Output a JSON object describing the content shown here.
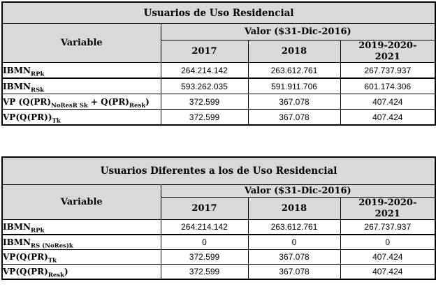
{
  "colors": {
    "header_bg": "#d9d9d9",
    "border": "#000000",
    "page_bg": "#ffffff",
    "text": "#000000"
  },
  "tables": [
    {
      "title": "Usuarios de Uso Residencial",
      "variable_header": "Variable",
      "valor_header": "Valor ($31-Dic-2016)",
      "year_headers": [
        "2017",
        "2018",
        "2019-2020-\n2021"
      ],
      "rows": [
        {
          "label": [
            {
              "text": "IBMN",
              "sub": false
            },
            {
              "text": "RPk",
              "sub": true
            }
          ],
          "values": [
            "264.214.142",
            "263.612.761",
            "267.737.937"
          ]
        },
        {
          "label": [
            {
              "text": "IBMN",
              "sub": false
            },
            {
              "text": "RSk",
              "sub": true
            }
          ],
          "values": [
            "593.262.035",
            "591.911.706",
            "601.174.306"
          ]
        },
        {
          "label": [
            {
              "text": "VP (Q(PR)",
              "sub": false
            },
            {
              "text": "NoResR Sk",
              "sub": true
            },
            {
              "text": " + Q(PR)",
              "sub": false
            },
            {
              "text": "Resk",
              "sub": true
            },
            {
              "text": ")",
              "sub": false
            }
          ],
          "values": [
            "372.599",
            "367.078",
            "407.424"
          ]
        },
        {
          "label": [
            {
              "text": "VP(Q(PR))",
              "sub": false
            },
            {
              "text": "Tk",
              "sub": true
            }
          ],
          "values": [
            "372.599",
            "367.078",
            "407.424"
          ]
        }
      ]
    },
    {
      "title": "Usuarios Diferentes a los de Uso Residencial",
      "variable_header": "Variable",
      "valor_header": "Valor ($31-Dic-2016)",
      "year_headers": [
        "2017",
        "2018",
        "2019-2020-\n2021"
      ],
      "rows": [
        {
          "label": [
            {
              "text": "IBMN",
              "sub": false
            },
            {
              "text": "RPk",
              "sub": true
            }
          ],
          "values": [
            "264.214.142",
            "263.612.761",
            "267.737.937"
          ]
        },
        {
          "label": [
            {
              "text": "IBMN",
              "sub": false
            },
            {
              "text": "RS (NoRes)k",
              "sub": true
            }
          ],
          "values": [
            "0",
            "0",
            "0"
          ]
        },
        {
          "label": [
            {
              "text": "VP(Q(PR)",
              "sub": false
            },
            {
              "text": "Tk",
              "sub": true
            }
          ],
          "values": [
            "372.599",
            "367.078",
            "407.424"
          ]
        },
        {
          "label": [
            {
              "text": "VP(Q(PR)",
              "sub": false
            },
            {
              "text": "Resk",
              "sub": true
            },
            {
              "text": ")",
              "sub": false
            }
          ],
          "values": [
            "372.599",
            "367.078",
            "407.424"
          ]
        }
      ]
    }
  ]
}
